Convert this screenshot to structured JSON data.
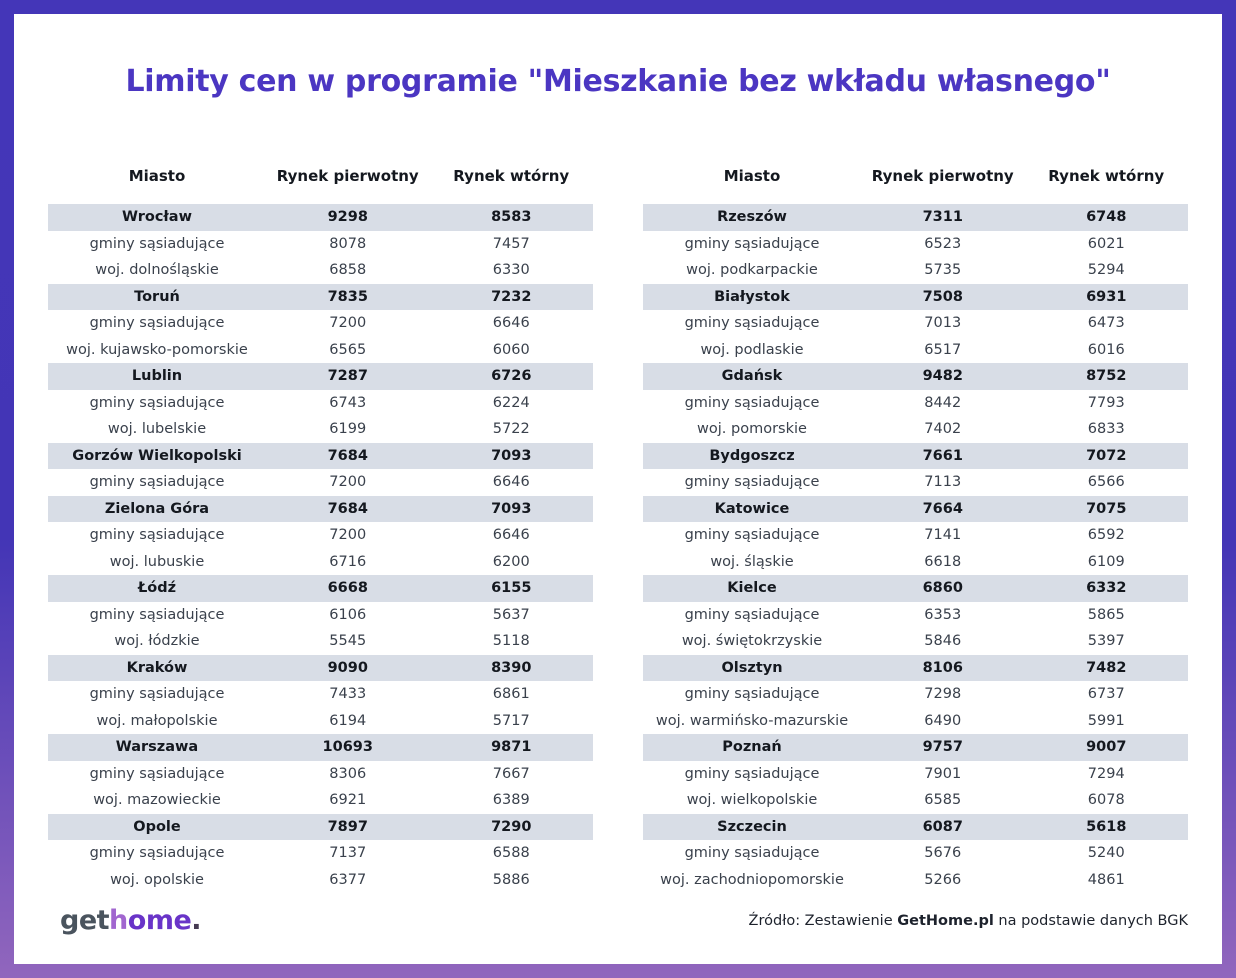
{
  "title": "Limity cen w programie \"Mieszkanie bez wkładu własnego\"",
  "chart_data": {
    "type": "table",
    "title": "Limity cen w programie \"Mieszkanie bez wkładu własnego\"",
    "columns": [
      "Miasto",
      "Rynek pierwotny",
      "Rynek wtórny"
    ],
    "tables": [
      {
        "rows": [
          {
            "label": "Wrocław",
            "primary": 9298,
            "secondary": 8583,
            "kind": "city"
          },
          {
            "label": "gminy sąsiadujące",
            "primary": 8078,
            "secondary": 7457,
            "kind": "sub"
          },
          {
            "label": "woj. dolnośląskie",
            "primary": 6858,
            "secondary": 6330,
            "kind": "sub"
          },
          {
            "label": "Toruń",
            "primary": 7835,
            "secondary": 7232,
            "kind": "city"
          },
          {
            "label": "gminy sąsiadujące",
            "primary": 7200,
            "secondary": 6646,
            "kind": "sub"
          },
          {
            "label": "woj. kujawsko-pomorskie",
            "primary": 6565,
            "secondary": 6060,
            "kind": "sub"
          },
          {
            "label": "Lublin",
            "primary": 7287,
            "secondary": 6726,
            "kind": "city"
          },
          {
            "label": "gminy sąsiadujące",
            "primary": 6743,
            "secondary": 6224,
            "kind": "sub"
          },
          {
            "label": "woj. lubelskie",
            "primary": 6199,
            "secondary": 5722,
            "kind": "sub"
          },
          {
            "label": "Gorzów Wielkopolski",
            "primary": 7684,
            "secondary": 7093,
            "kind": "city"
          },
          {
            "label": "gminy sąsiadujące",
            "primary": 7200,
            "secondary": 6646,
            "kind": "sub"
          },
          {
            "label": "Zielona Góra",
            "primary": 7684,
            "secondary": 7093,
            "kind": "city"
          },
          {
            "label": "gminy sąsiadujące",
            "primary": 7200,
            "secondary": 6646,
            "kind": "sub"
          },
          {
            "label": "woj. lubuskie",
            "primary": 6716,
            "secondary": 6200,
            "kind": "sub"
          },
          {
            "label": "Łódź",
            "primary": 6668,
            "secondary": 6155,
            "kind": "city"
          },
          {
            "label": "gminy sąsiadujące",
            "primary": 6106,
            "secondary": 5637,
            "kind": "sub"
          },
          {
            "label": "woj. łódzkie",
            "primary": 5545,
            "secondary": 5118,
            "kind": "sub"
          },
          {
            "label": "Kraków",
            "primary": 9090,
            "secondary": 8390,
            "kind": "city"
          },
          {
            "label": "gminy sąsiadujące",
            "primary": 7433,
            "secondary": 6861,
            "kind": "sub"
          },
          {
            "label": "woj. małopolskie",
            "primary": 6194,
            "secondary": 5717,
            "kind": "sub"
          },
          {
            "label": "Warszawa",
            "primary": 10693,
            "secondary": 9871,
            "kind": "city"
          },
          {
            "label": "gminy sąsiadujące",
            "primary": 8306,
            "secondary": 7667,
            "kind": "sub"
          },
          {
            "label": "woj. mazowieckie",
            "primary": 6921,
            "secondary": 6389,
            "kind": "sub"
          },
          {
            "label": "Opole",
            "primary": 7897,
            "secondary": 7290,
            "kind": "city"
          },
          {
            "label": "gminy sąsiadujące",
            "primary": 7137,
            "secondary": 6588,
            "kind": "sub"
          },
          {
            "label": "woj. opolskie",
            "primary": 6377,
            "secondary": 5886,
            "kind": "sub"
          }
        ]
      },
      {
        "rows": [
          {
            "label": "Rzeszów",
            "primary": 7311,
            "secondary": 6748,
            "kind": "city"
          },
          {
            "label": "gminy sąsiadujące",
            "primary": 6523,
            "secondary": 6021,
            "kind": "sub"
          },
          {
            "label": "woj. podkarpackie",
            "primary": 5735,
            "secondary": 5294,
            "kind": "sub"
          },
          {
            "label": "Białystok",
            "primary": 7508,
            "secondary": 6931,
            "kind": "city"
          },
          {
            "label": "gminy sąsiadujące",
            "primary": 7013,
            "secondary": 6473,
            "kind": "sub"
          },
          {
            "label": "woj. podlaskie",
            "primary": 6517,
            "secondary": 6016,
            "kind": "sub"
          },
          {
            "label": "Gdańsk",
            "primary": 9482,
            "secondary": 8752,
            "kind": "city"
          },
          {
            "label": "gminy sąsiadujące",
            "primary": 8442,
            "secondary": 7793,
            "kind": "sub"
          },
          {
            "label": "woj. pomorskie",
            "primary": 7402,
            "secondary": 6833,
            "kind": "sub"
          },
          {
            "label": "Bydgoszcz",
            "primary": 7661,
            "secondary": 7072,
            "kind": "city"
          },
          {
            "label": "gminy sąsiadujące",
            "primary": 7113,
            "secondary": 6566,
            "kind": "sub"
          },
          {
            "label": "Katowice",
            "primary": 7664,
            "secondary": 7075,
            "kind": "city"
          },
          {
            "label": "gminy sąsiadujące",
            "primary": 7141,
            "secondary": 6592,
            "kind": "sub"
          },
          {
            "label": "woj. śląskie",
            "primary": 6618,
            "secondary": 6109,
            "kind": "sub"
          },
          {
            "label": "Kielce",
            "primary": 6860,
            "secondary": 6332,
            "kind": "city"
          },
          {
            "label": "gminy sąsiadujące",
            "primary": 6353,
            "secondary": 5865,
            "kind": "sub"
          },
          {
            "label": "woj. świętokrzyskie",
            "primary": 5846,
            "secondary": 5397,
            "kind": "sub"
          },
          {
            "label": "Olsztyn",
            "primary": 8106,
            "secondary": 7482,
            "kind": "city"
          },
          {
            "label": "gminy sąsiadujące",
            "primary": 7298,
            "secondary": 6737,
            "kind": "sub"
          },
          {
            "label": "woj. warmińsko-mazurskie",
            "primary": 6490,
            "secondary": 5991,
            "kind": "sub"
          },
          {
            "label": "Poznań",
            "primary": 9757,
            "secondary": 9007,
            "kind": "city"
          },
          {
            "label": "gminy sąsiadujące",
            "primary": 7901,
            "secondary": 7294,
            "kind": "sub"
          },
          {
            "label": "woj. wielkopolskie",
            "primary": 6585,
            "secondary": 6078,
            "kind": "sub"
          },
          {
            "label": "Szczecin",
            "primary": 6087,
            "secondary": 5618,
            "kind": "city"
          },
          {
            "label": "gminy sąsiadujące",
            "primary": 5676,
            "secondary": 5240,
            "kind": "sub"
          },
          {
            "label": "woj. zachodniopomorskie",
            "primary": 5266,
            "secondary": 4861,
            "kind": "sub"
          }
        ]
      }
    ]
  },
  "footer": {
    "logo": [
      {
        "text": "get",
        "color": "#4a545e"
      },
      {
        "text": "h",
        "color": "#a166cf"
      },
      {
        "text": "ome",
        "color": "#6934c8"
      },
      {
        "text": ".",
        "color": "#463b52"
      }
    ],
    "source_prefix": "Źródło: Zestawienie ",
    "source_bold": "GetHome.pl",
    "source_suffix": " na podstawie danych BGK"
  },
  "colors": {
    "frame_top": "#4436b8",
    "frame_bottom": "#9166bd",
    "title": "#4b36c2",
    "row_shaded": "#d8dde6",
    "text_bold": "#14181f",
    "text_regular": "#3a414c"
  }
}
